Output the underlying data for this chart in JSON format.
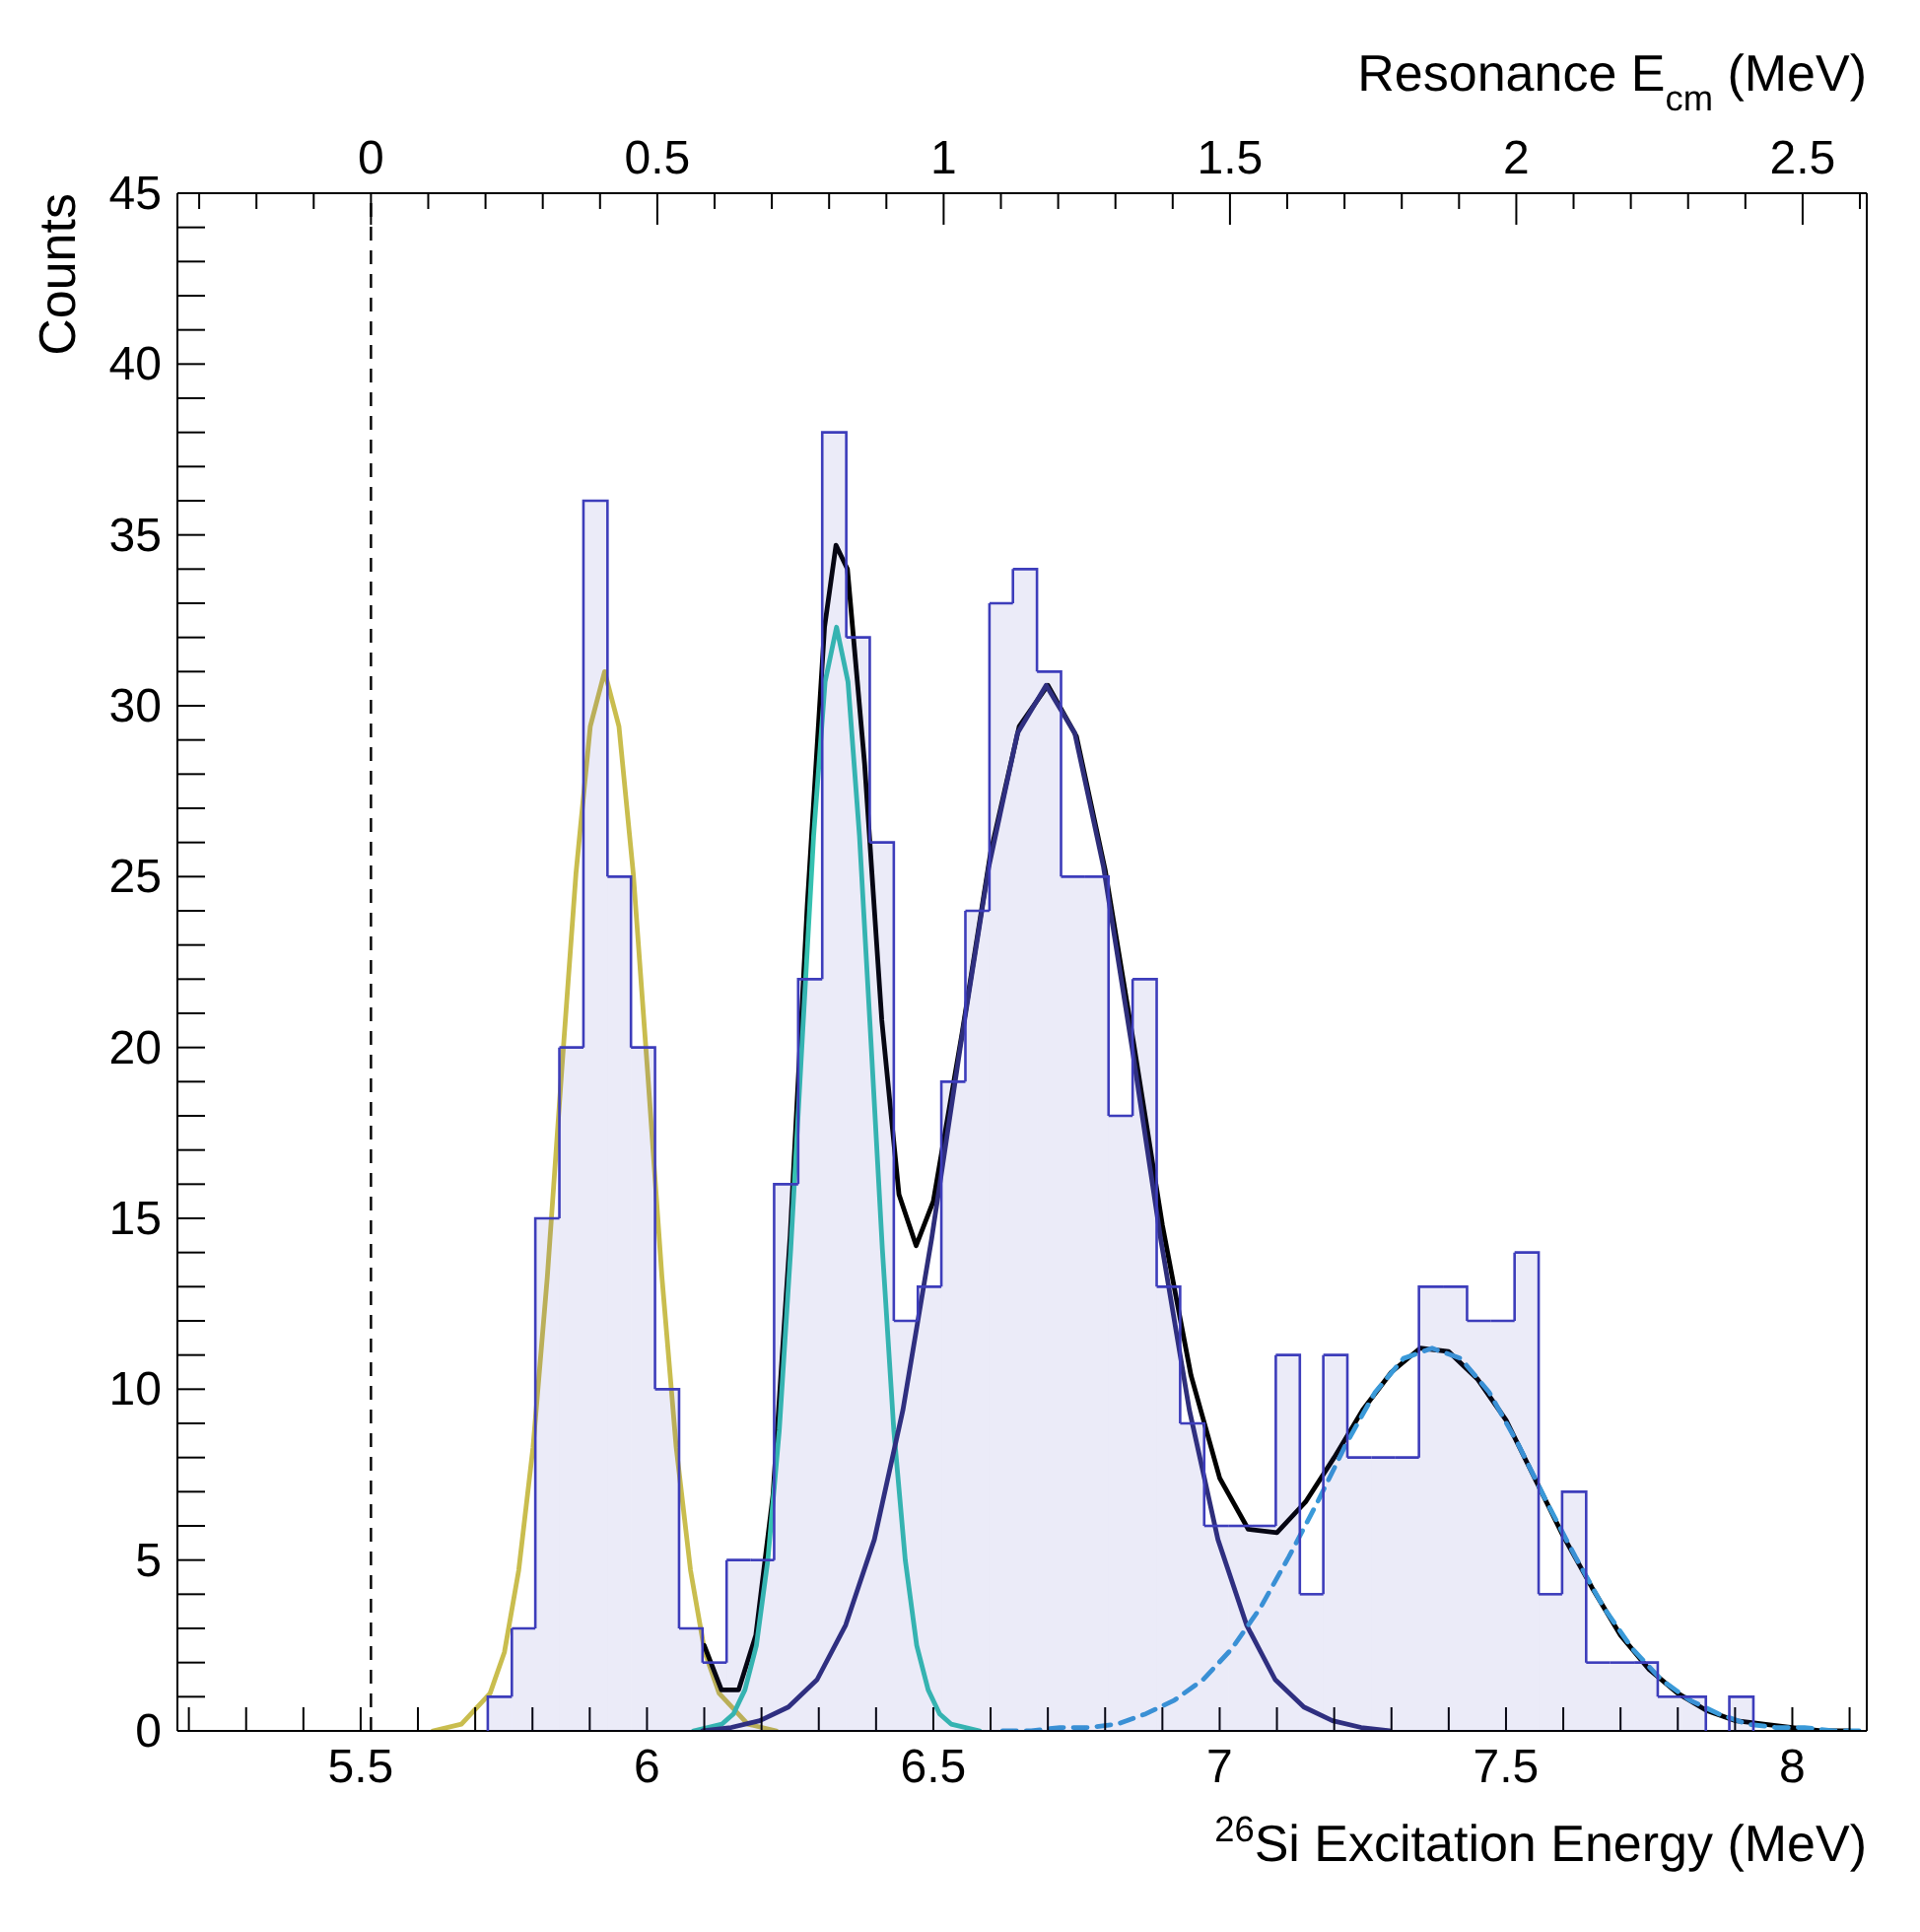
{
  "chart_data": {
    "type": "histogram",
    "xlabel": "$^{26}$Si Excitation Energy (MeV)",
    "ylabel": "Counts",
    "x2label": "Resonance E$_{cm}$ (MeV)",
    "bins": [
      5.722,
      5.764,
      5.805,
      5.847,
      5.889,
      5.931,
      5.972,
      6.014,
      6.056,
      6.097,
      6.139,
      6.181,
      6.222,
      6.264,
      6.306,
      6.348,
      6.389,
      6.431,
      6.473,
      6.514,
      6.556,
      6.598,
      6.639,
      6.681,
      6.723,
      6.765,
      6.806,
      6.848,
      6.89,
      6.931,
      6.973,
      7.015,
      7.056,
      7.098,
      7.14,
      7.181,
      7.223,
      7.265,
      7.307,
      7.348,
      7.39,
      7.432,
      7.473,
      7.515,
      7.557,
      7.598,
      7.64,
      7.682,
      7.724,
      7.765,
      7.807,
      7.849,
      7.89,
      7.932
    ],
    "values": [
      1,
      3,
      15,
      20,
      36,
      25,
      20,
      10,
      3,
      2,
      5,
      5,
      16,
      22,
      38,
      32,
      26,
      12,
      13,
      19,
      24,
      33,
      34,
      31,
      25,
      25,
      18,
      22,
      13,
      9,
      6,
      6,
      6,
      11,
      4,
      11,
      8,
      8,
      8,
      13,
      13,
      12,
      12,
      14,
      4,
      7,
      2,
      2,
      2,
      1,
      1,
      0,
      1
    ],
    "color": "#3d3dbb",
    "series": [
      {
        "type": "line",
        "color": "#c9bd4e",
        "x": [
          5.626,
          5.676,
          5.726,
          5.751,
          5.776,
          5.801,
          5.826,
          5.851,
          5.876,
          5.901,
          5.926,
          5.951,
          5.976,
          6.001,
          6.026,
          6.051,
          6.076,
          6.101,
          6.126,
          6.176,
          6.226
        ],
        "values": [
          0.0,
          0.2,
          1.1,
          2.3,
          4.7,
          8.3,
          13.3,
          19.3,
          25.1,
          29.4,
          31.0,
          29.4,
          25.1,
          19.3,
          13.3,
          8.3,
          4.7,
          2.3,
          1.1,
          0.2,
          0.0
        ]
      },
      {
        "type": "line",
        "color": "#000000",
        "x": [
          6.1,
          6.13,
          6.16,
          6.19,
          6.22,
          6.25,
          6.28,
          6.31,
          6.33,
          6.35,
          6.38,
          6.41,
          6.44,
          6.47,
          6.5,
          6.55,
          6.6,
          6.65,
          6.7,
          6.75,
          6.8,
          6.85,
          6.9,
          6.95,
          7.0,
          7.05,
          7.1,
          7.15,
          7.2,
          7.25,
          7.3,
          7.35,
          7.4,
          7.45,
          7.5,
          7.55,
          7.6,
          7.65,
          7.7,
          7.75,
          7.8,
          7.85,
          7.9,
          7.95,
          8.0,
          8.05,
          8.1
        ],
        "values": [
          2.5,
          1.2,
          1.2,
          2.8,
          6.9,
          14.5,
          24.2,
          32.3,
          34.7,
          34.0,
          28.3,
          20.8,
          15.7,
          14.2,
          15.5,
          20.4,
          25.7,
          29.4,
          30.6,
          29.1,
          25.2,
          20.1,
          14.8,
          10.4,
          7.4,
          5.9,
          5.8,
          6.7,
          8.0,
          9.4,
          10.5,
          11.2,
          11.1,
          10.3,
          9.1,
          7.4,
          5.7,
          4.2,
          2.8,
          1.8,
          1.1,
          0.6,
          0.3,
          0.2,
          0.1,
          0.0,
          0.0
        ]
      },
      {
        "type": "line",
        "color": "#35c1b0",
        "x": [
          6.081,
          6.131,
          6.151,
          6.171,
          6.191,
          6.211,
          6.231,
          6.251,
          6.271,
          6.291,
          6.311,
          6.331,
          6.351,
          6.371,
          6.391,
          6.411,
          6.431,
          6.451,
          6.471,
          6.491,
          6.511,
          6.531,
          6.581
        ],
        "values": [
          0.0,
          0.2,
          0.5,
          1.2,
          2.5,
          5.0,
          8.8,
          14.1,
          20.2,
          26.2,
          30.7,
          32.3,
          30.7,
          26.2,
          20.2,
          14.1,
          8.8,
          5.0,
          2.5,
          1.2,
          0.5,
          0.2,
          0.0
        ]
      },
      {
        "type": "line",
        "color": "#2e2e7a",
        "x": [
          6.097,
          6.147,
          6.197,
          6.247,
          6.297,
          6.347,
          6.397,
          6.447,
          6.497,
          6.547,
          6.597,
          6.647,
          6.697,
          6.747,
          6.797,
          6.847,
          6.897,
          6.947,
          6.997,
          7.047,
          7.097,
          7.147,
          7.197,
          7.247,
          7.297
        ],
        "values": [
          0.0,
          0.1,
          0.3,
          0.7,
          1.5,
          3.1,
          5.6,
          9.4,
          14.4,
          20.0,
          25.3,
          29.2,
          30.6,
          29.2,
          25.3,
          20.0,
          14.4,
          9.4,
          5.6,
          3.1,
          1.5,
          0.7,
          0.3,
          0.1,
          0.0
        ]
      },
      {
        "type": "line",
        "color": "#3a9ad9",
        "line_style": "dashed",
        "x": [
          6.621,
          6.671,
          6.721,
          6.771,
          6.821,
          6.871,
          6.921,
          6.971,
          7.021,
          7.071,
          7.121,
          7.171,
          7.221,
          7.271,
          7.321,
          7.371,
          7.421,
          7.471,
          7.521,
          7.571,
          7.621,
          7.671,
          7.721,
          7.771,
          7.821,
          7.871,
          7.921,
          7.971,
          8.021,
          8.071,
          8.121
        ],
        "values": [
          0.0,
          0.0,
          0.1,
          0.1,
          0.2,
          0.5,
          0.9,
          1.5,
          2.4,
          3.6,
          5.1,
          6.7,
          8.4,
          9.9,
          10.9,
          11.2,
          10.9,
          9.9,
          8.4,
          6.7,
          5.1,
          3.6,
          2.4,
          1.5,
          0.9,
          0.5,
          0.2,
          0.1,
          0.1,
          0.0,
          0.0
        ]
      }
    ],
    "ref_lines": [
      {
        "axis": "x",
        "value": 5.518,
        "color": "#000000",
        "line_style": "dashed"
      }
    ],
    "xlim": [
      5.18,
      8.13
    ],
    "xticks": [
      {
        "value": 5.2,
        "label": null
      },
      {
        "value": 5.3,
        "label": null
      },
      {
        "value": 5.4,
        "label": null
      },
      5.5,
      {
        "value": 5.6,
        "label": null
      },
      {
        "value": 5.7,
        "label": null
      },
      {
        "value": 5.8,
        "label": null
      },
      {
        "value": 5.9,
        "label": null
      },
      6,
      {
        "value": 6.1,
        "label": null
      },
      {
        "value": 6.2,
        "label": null
      },
      {
        "value": 6.3,
        "label": null
      },
      {
        "value": 6.4,
        "label": null
      },
      6.5,
      {
        "value": 6.6,
        "label": null
      },
      {
        "value": 6.7,
        "label": null
      },
      {
        "value": 6.8,
        "label": null
      },
      {
        "value": 6.9,
        "label": null
      },
      7,
      {
        "value": 7.1,
        "label": null
      },
      {
        "value": 7.2,
        "label": null
      },
      {
        "value": 7.3,
        "label": null
      },
      {
        "value": 7.4,
        "label": null
      },
      7.5,
      {
        "value": 7.6,
        "label": null
      },
      {
        "value": 7.7,
        "label": null
      },
      {
        "value": 7.8,
        "label": null
      },
      {
        "value": 7.9,
        "label": null
      },
      8,
      {
        "value": 8.1,
        "label": null
      }
    ],
    "x2lim": [
      -0.338,
      2.612
    ],
    "x2ticks": [
      {
        "value": -0.3,
        "label": null
      },
      {
        "value": -0.2,
        "label": null
      },
      {
        "value": -0.1,
        "label": null
      },
      0,
      {
        "value": 0.1,
        "label": null
      },
      {
        "value": 0.2,
        "label": null
      },
      {
        "value": 0.3,
        "label": null
      },
      {
        "value": 0.4,
        "label": null
      },
      0.5,
      {
        "value": 0.6,
        "label": null
      },
      {
        "value": 0.7,
        "label": null
      },
      {
        "value": 0.8,
        "label": null
      },
      {
        "value": 0.9,
        "label": null
      },
      1,
      {
        "value": 1.1,
        "label": null
      },
      {
        "value": 1.2,
        "label": null
      },
      {
        "value": 1.3,
        "label": null
      },
      {
        "value": 1.4,
        "label": null
      },
      1.5,
      {
        "value": 1.6,
        "label": null
      },
      {
        "value": 1.7,
        "label": null
      },
      {
        "value": 1.8,
        "label": null
      },
      {
        "value": 1.9,
        "label": null
      },
      2,
      {
        "value": 2.1,
        "label": null
      },
      {
        "value": 2.2,
        "label": null
      },
      {
        "value": 2.3,
        "label": null
      },
      {
        "value": 2.4,
        "label": null
      },
      2.5,
      {
        "value": 2.6,
        "label": null
      }
    ],
    "ylim": [
      0,
      45
    ],
    "yticks": [
      0,
      {
        "value": 1,
        "label": null
      },
      {
        "value": 2,
        "label": null
      },
      {
        "value": 3,
        "label": null
      },
      {
        "value": 4,
        "label": null
      },
      5,
      {
        "value": 6,
        "label": null
      },
      {
        "value": 7,
        "label": null
      },
      {
        "value": 8,
        "label": null
      },
      {
        "value": 9,
        "label": null
      },
      10,
      {
        "value": 11,
        "label": null
      },
      {
        "value": 12,
        "label": null
      },
      {
        "value": 13,
        "label": null
      },
      {
        "value": 14,
        "label": null
      },
      15,
      {
        "value": 16,
        "label": null
      },
      {
        "value": 17,
        "label": null
      },
      {
        "value": 18,
        "label": null
      },
      {
        "value": 19,
        "label": null
      },
      20,
      {
        "value": 21,
        "label": null
      },
      {
        "value": 22,
        "label": null
      },
      {
        "value": 23,
        "label": null
      },
      {
        "value": 24,
        "label": null
      },
      25,
      {
        "value": 26,
        "label": null
      },
      {
        "value": 27,
        "label": null
      },
      {
        "value": 28,
        "label": null
      },
      {
        "value": 29,
        "label": null
      },
      30,
      {
        "value": 31,
        "label": null
      },
      {
        "value": 32,
        "label": null
      },
      {
        "value": 33,
        "label": null
      },
      {
        "value": 34,
        "label": null
      },
      35,
      {
        "value": 36,
        "label": null
      },
      {
        "value": 37,
        "label": null
      },
      {
        "value": 38,
        "label": null
      },
      {
        "value": 39,
        "label": null
      },
      40,
      {
        "value": 41,
        "label": null
      },
      {
        "value": 42,
        "label": null
      },
      {
        "value": 43,
        "label": null
      },
      {
        "value": 44,
        "label": null
      },
      45
    ]
  }
}
